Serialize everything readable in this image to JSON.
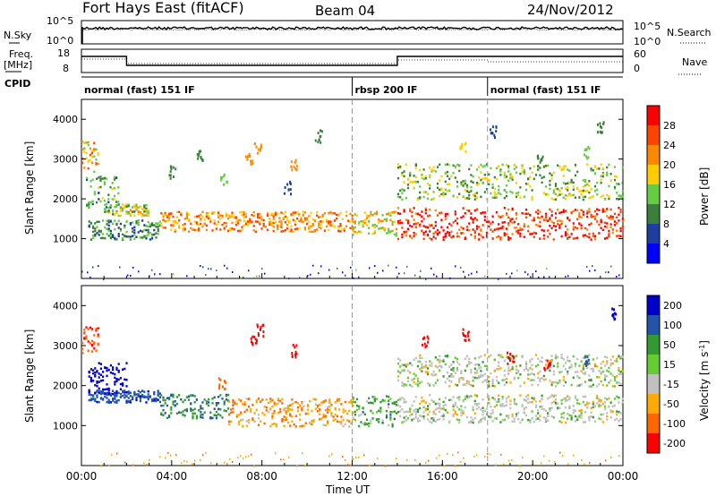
{
  "header": {
    "station": "Fort Hays East (fitACF)",
    "beam": "Beam 04",
    "date": "24/Nov/2012"
  },
  "panels": {
    "nsky_label": "N.Sky",
    "nsearch_label": "N.Search",
    "freq_label_line1": "Freq.",
    "freq_label_line2": "[MHz]",
    "nave_label": "Nave",
    "cpid_label": "CPID",
    "nsky_ticks": [
      "10^5",
      "10^0"
    ],
    "nsearch_ticks": [
      "10^5",
      "10^0"
    ],
    "freq_ticks": [
      "18",
      "8"
    ],
    "nave_ticks": [
      "60",
      "0"
    ]
  },
  "cpid_segments": [
    {
      "label": "normal (fast) 151 IF",
      "start_h": 0,
      "end_h": 12
    },
    {
      "label": "rbsp 200 IF",
      "start_h": 12,
      "end_h": 18
    },
    {
      "label": "normal (fast) 151 IF",
      "start_h": 18,
      "end_h": 24
    }
  ],
  "colors": {
    "power": [
      "#0000ff",
      "#1e3ea0",
      "#3a7f3a",
      "#66cc44",
      "#ffcc00",
      "#ff8800",
      "#ff4400",
      "#ff0000"
    ],
    "velocity": [
      "#ff0000",
      "#ff6600",
      "#ffaa00",
      "#c0c0c0",
      "#66cc33",
      "#339933",
      "#2255aa",
      "#0000cc"
    ],
    "ground_scatter": "#c0c0c0"
  },
  "chart_data": [
    {
      "type": "heatmap",
      "panel": "power",
      "xlabel": "",
      "ylabel": "Slant Range [km]",
      "ylim": [
        0,
        4500
      ],
      "y_ticks": [
        1000,
        2000,
        3000,
        4000
      ],
      "colorbar_label": "Power [dB]",
      "colorbar_ticks": [
        4,
        8,
        12,
        16,
        20,
        24,
        28
      ],
      "colorbar_range": [
        0,
        32
      ],
      "scatter_bands": [
        {
          "start_h": 0.0,
          "end_h": 0.7,
          "range_low": 2700,
          "range_high": 3500,
          "db": 20
        },
        {
          "start_h": 0.2,
          "end_h": 1.6,
          "range_low": 1800,
          "range_high": 2600,
          "db": 12
        },
        {
          "start_h": 0.3,
          "end_h": 3.5,
          "range_low": 1000,
          "range_high": 1500,
          "db": 10
        },
        {
          "start_h": 1.0,
          "end_h": 3.0,
          "range_low": 1600,
          "range_high": 1900,
          "db": 16
        },
        {
          "start_h": 3.5,
          "end_h": 12.0,
          "range_low": 1200,
          "range_high": 1700,
          "db": 22
        },
        {
          "start_h": 12.0,
          "end_h": 14.0,
          "range_low": 1100,
          "range_high": 1700,
          "db": 18
        },
        {
          "start_h": 14.0,
          "end_h": 24.0,
          "range_low": 1000,
          "range_high": 1800,
          "db": 28
        },
        {
          "start_h": 14.0,
          "end_h": 24.0,
          "range_low": 2000,
          "range_high": 2900,
          "db": 14
        }
      ],
      "sparse_echo_patches": [
        {
          "h": 4.0,
          "range_km": 2700,
          "db": 10
        },
        {
          "h": 5.2,
          "range_km": 3100,
          "db": 8
        },
        {
          "h": 6.3,
          "range_km": 2500,
          "db": 12
        },
        {
          "h": 7.4,
          "range_km": 3000,
          "db": 20
        },
        {
          "h": 7.8,
          "range_km": 3300,
          "db": 22
        },
        {
          "h": 9.1,
          "range_km": 2300,
          "db": 6
        },
        {
          "h": 9.4,
          "range_km": 2900,
          "db": 22
        },
        {
          "h": 10.5,
          "range_km": 3600,
          "db": 8
        },
        {
          "h": 16.9,
          "range_km": 3300,
          "db": 16
        },
        {
          "h": 18.2,
          "range_km": 3700,
          "db": 6
        },
        {
          "h": 20.3,
          "range_km": 3000,
          "db": 10
        },
        {
          "h": 22.4,
          "range_km": 3200,
          "db": 12
        },
        {
          "h": 23.0,
          "range_km": 3800,
          "db": 8
        }
      ],
      "near_range_noise": {
        "start_h": 0,
        "end_h": 24,
        "range_low": 0,
        "range_high": 350,
        "db": 4
      }
    },
    {
      "type": "heatmap",
      "panel": "velocity",
      "xlabel": "Time UT",
      "ylabel": "Slant Range [km]",
      "ylim": [
        0,
        4500
      ],
      "y_ticks": [
        1000,
        2000,
        3000,
        4000
      ],
      "x_ticks": [
        "00:00",
        "04:00",
        "08:00",
        "12:00",
        "16:00",
        "20:00",
        "00:00"
      ],
      "colorbar_label": "Velocity [m s^-1]",
      "colorbar_ticks": [
        -200,
        -100,
        -50,
        -15,
        15,
        50,
        100,
        200
      ],
      "scatter_bands": [
        {
          "start_h": 0.0,
          "end_h": 0.7,
          "range_low": 2800,
          "range_high": 3500,
          "vel": -150
        },
        {
          "start_h": 0.3,
          "end_h": 2.0,
          "range_low": 1800,
          "range_high": 2600,
          "vel": 220
        },
        {
          "start_h": 0.3,
          "end_h": 3.5,
          "range_low": 1600,
          "range_high": 1900,
          "vel": 120
        },
        {
          "start_h": 3.5,
          "end_h": 6.5,
          "range_low": 1200,
          "range_high": 1800,
          "vel": 70
        },
        {
          "start_h": 6.5,
          "end_h": 12.0,
          "range_low": 1000,
          "range_high": 1700,
          "vel": -60
        },
        {
          "start_h": 12.0,
          "end_h": 14.0,
          "range_low": 1000,
          "range_high": 1800,
          "vel": 40
        },
        {
          "start_h": 14.0,
          "end_h": 24.0,
          "range_low": 1100,
          "range_high": 1800,
          "vel": 0
        },
        {
          "start_h": 14.0,
          "end_h": 24.0,
          "range_low": 2000,
          "range_high": 2800,
          "vel": 0
        }
      ],
      "sparse_echo_patches": [
        {
          "h": 7.6,
          "range_km": 3100,
          "vel": -200
        },
        {
          "h": 7.9,
          "range_km": 3400,
          "vel": -180
        },
        {
          "h": 9.4,
          "range_km": 2900,
          "vel": -210
        },
        {
          "h": 6.2,
          "range_km": 2100,
          "vel": -80
        },
        {
          "h": 15.2,
          "range_km": 3100,
          "vel": -180
        },
        {
          "h": 17.0,
          "range_km": 3300,
          "vel": -200
        },
        {
          "h": 19.0,
          "range_km": 2700,
          "vel": -180
        },
        {
          "h": 20.6,
          "range_km": 2500,
          "vel": -160
        },
        {
          "h": 22.3,
          "range_km": 2600,
          "vel": 150
        },
        {
          "h": 23.5,
          "range_km": 3800,
          "vel": 200
        }
      ],
      "near_range_noise": {
        "start_h": 0,
        "end_h": 24,
        "range_low": 0,
        "range_high": 350,
        "vel": -70
      }
    }
  ]
}
